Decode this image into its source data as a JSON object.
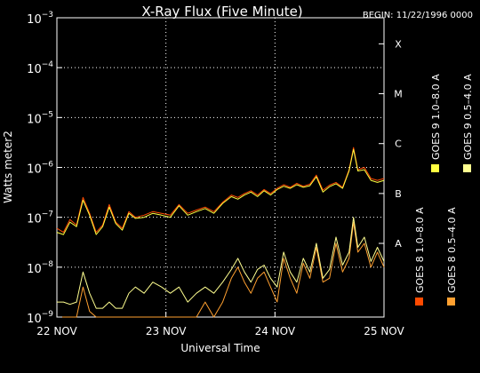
{
  "chart_data": {
    "type": "line",
    "title": "X-Ray Flux (Five Minute)",
    "begin_label": "BEGIN: 11/22/1996 0000",
    "xlabel": "Universal Time",
    "ylabel": "Watts meter2",
    "y_scale": "log",
    "ylim": [
      1e-09,
      0.001
    ],
    "x_ticks": [
      {
        "day": 0,
        "label": "22 NOV"
      },
      {
        "day": 1,
        "label": "23 NOV"
      },
      {
        "day": 2,
        "label": "24 NOV"
      },
      {
        "day": 3,
        "label": "25 NOV"
      }
    ],
    "xlim_days": [
      0,
      3
    ],
    "y_ticks": [
      {
        "value": 1e-09,
        "base": "10",
        "exp": "−9"
      },
      {
        "value": 1e-08,
        "base": "10",
        "exp": "−8"
      },
      {
        "value": 1e-07,
        "base": "10",
        "exp": "−7"
      },
      {
        "value": 1e-06,
        "base": "10",
        "exp": "−6"
      },
      {
        "value": 1e-05,
        "base": "10",
        "exp": "−5"
      },
      {
        "value": 0.0001,
        "base": "10",
        "exp": "−4"
      },
      {
        "value": 0.001,
        "base": "10",
        "exp": "−3"
      }
    ],
    "flare_classes": [
      {
        "label": "A",
        "value": 3e-08
      },
      {
        "label": "B",
        "value": 3e-07
      },
      {
        "label": "C",
        "value": 3e-06
      },
      {
        "label": "M",
        "value": 3e-05
      },
      {
        "label": "X",
        "value": 0.0003
      }
    ],
    "grid": true,
    "legend_position": "right (vertical)",
    "series": [
      {
        "name": "GOES 8 1.0–8.0 A",
        "color": "#ff4a00",
        "x_days": [
          0.0,
          0.06,
          0.12,
          0.18,
          0.24,
          0.3,
          0.36,
          0.42,
          0.48,
          0.54,
          0.6,
          0.66,
          0.72,
          0.8,
          0.88,
          0.96,
          1.04,
          1.12,
          1.2,
          1.28,
          1.36,
          1.44,
          1.52,
          1.6,
          1.66,
          1.72,
          1.78,
          1.84,
          1.9,
          1.96,
          2.02,
          2.08,
          2.14,
          2.2,
          2.26,
          2.32,
          2.38,
          2.44,
          2.5,
          2.56,
          2.62,
          2.68,
          2.72,
          2.76,
          2.82,
          2.88,
          2.94,
          3.0
        ],
        "y": [
          6e-08,
          5e-08,
          9e-08,
          7e-08,
          2.5e-07,
          1.2e-07,
          5e-08,
          7e-08,
          1.8e-07,
          8e-08,
          6e-08,
          1.3e-07,
          1e-07,
          1.1e-07,
          1.3e-07,
          1.2e-07,
          1.1e-07,
          1.8e-07,
          1.2e-07,
          1.4e-07,
          1.6e-07,
          1.3e-07,
          2e-07,
          2.8e-07,
          2.5e-07,
          3e-07,
          3.4e-07,
          2.8e-07,
          3.6e-07,
          3e-07,
          3.8e-07,
          4.5e-07,
          4e-07,
          4.8e-07,
          4.2e-07,
          4.6e-07,
          7e-07,
          3.5e-07,
          4.4e-07,
          5e-07,
          4e-07,
          9e-07,
          2.5e-06,
          9e-07,
          1e-06,
          6e-07,
          5.5e-07,
          6e-07
        ]
      },
      {
        "name": "GOES 8 0.5–4.0 A",
        "color": "#ffa030",
        "x_days": [
          0.0,
          0.06,
          0.12,
          0.18,
          0.24,
          0.3,
          0.36,
          0.42,
          0.48,
          0.54,
          0.6,
          0.66,
          0.72,
          0.8,
          0.88,
          0.96,
          1.04,
          1.12,
          1.2,
          1.28,
          1.36,
          1.44,
          1.52,
          1.6,
          1.66,
          1.72,
          1.78,
          1.84,
          1.9,
          1.96,
          2.02,
          2.08,
          2.14,
          2.2,
          2.26,
          2.32,
          2.38,
          2.44,
          2.5,
          2.56,
          2.62,
          2.68,
          2.72,
          2.76,
          2.82,
          2.88,
          2.94,
          3.0
        ],
        "y": [
          1e-09,
          1e-09,
          1e-09,
          1e-09,
          4e-09,
          1.3e-09,
          1e-09,
          1e-09,
          1e-09,
          1e-09,
          1e-09,
          1e-09,
          1e-09,
          1e-09,
          1e-09,
          1e-09,
          1e-09,
          1e-09,
          1e-09,
          1e-09,
          2e-09,
          1e-09,
          2e-09,
          6e-09,
          1e-08,
          5e-09,
          3e-09,
          6e-09,
          8e-09,
          4e-09,
          2e-09,
          1.5e-08,
          6e-09,
          3e-09,
          1.2e-08,
          6e-09,
          2.5e-08,
          5e-09,
          6e-09,
          3e-08,
          8e-09,
          1.5e-08,
          8e-08,
          2e-08,
          3e-08,
          1e-08,
          2e-08,
          1e-08
        ]
      },
      {
        "name": "GOES 9 1.0–8.0 A",
        "color": "#ffff40",
        "x_days": [
          0.0,
          0.06,
          0.12,
          0.18,
          0.24,
          0.3,
          0.36,
          0.42,
          0.48,
          0.54,
          0.6,
          0.66,
          0.72,
          0.8,
          0.88,
          0.96,
          1.04,
          1.12,
          1.2,
          1.28,
          1.36,
          1.44,
          1.52,
          1.6,
          1.66,
          1.72,
          1.78,
          1.84,
          1.9,
          1.96,
          2.02,
          2.08,
          2.14,
          2.2,
          2.26,
          2.32,
          2.38,
          2.44,
          2.5,
          2.56,
          2.62,
          2.68,
          2.72,
          2.76,
          2.82,
          2.88,
          2.94,
          3.0
        ],
        "y": [
          5e-08,
          4.5e-08,
          8e-08,
          6.5e-08,
          2.2e-07,
          1.1e-07,
          4.5e-08,
          6.5e-08,
          1.6e-07,
          7.5e-08,
          5.5e-08,
          1.2e-07,
          9.5e-08,
          1e-07,
          1.2e-07,
          1.1e-07,
          1e-07,
          1.7e-07,
          1.1e-07,
          1.3e-07,
          1.5e-07,
          1.2e-07,
          1.9e-07,
          2.6e-07,
          2.3e-07,
          2.8e-07,
          3.2e-07,
          2.6e-07,
          3.4e-07,
          2.8e-07,
          3.6e-07,
          4.2e-07,
          3.8e-07,
          4.5e-07,
          4e-07,
          4.3e-07,
          6.5e-07,
          3.2e-07,
          4.1e-07,
          4.7e-07,
          3.8e-07,
          8.5e-07,
          2.3e-06,
          8.5e-07,
          9e-07,
          5.5e-07,
          5e-07,
          5.5e-07
        ]
      },
      {
        "name": "GOES 9 0.5–4.0 A",
        "color": "#ffff90",
        "x_days": [
          0.0,
          0.06,
          0.12,
          0.18,
          0.24,
          0.3,
          0.36,
          0.42,
          0.48,
          0.54,
          0.6,
          0.66,
          0.72,
          0.8,
          0.88,
          0.96,
          1.04,
          1.12,
          1.2,
          1.28,
          1.36,
          1.44,
          1.52,
          1.6,
          1.66,
          1.72,
          1.78,
          1.84,
          1.9,
          1.96,
          2.02,
          2.08,
          2.14,
          2.2,
          2.26,
          2.32,
          2.38,
          2.44,
          2.5,
          2.56,
          2.62,
          2.68,
          2.72,
          2.76,
          2.82,
          2.88,
          2.94,
          3.0
        ],
        "y": [
          2e-09,
          2e-09,
          1.8e-09,
          2e-09,
          8e-09,
          3e-09,
          1.5e-09,
          1.5e-09,
          2e-09,
          1.5e-09,
          1.5e-09,
          3e-09,
          4e-09,
          3e-09,
          5e-09,
          4e-09,
          3e-09,
          4e-09,
          2e-09,
          3e-09,
          4e-09,
          3e-09,
          5e-09,
          9e-09,
          1.5e-08,
          8e-09,
          5e-09,
          9e-09,
          1.1e-08,
          6e-09,
          4e-09,
          2e-08,
          8e-09,
          5e-09,
          1.5e-08,
          8e-09,
          3e-08,
          6e-09,
          9e-09,
          4e-08,
          1.1e-08,
          2e-08,
          1e-07,
          2.5e-08,
          4e-08,
          1.3e-08,
          2.5e-08,
          1.3e-08
        ]
      }
    ]
  }
}
